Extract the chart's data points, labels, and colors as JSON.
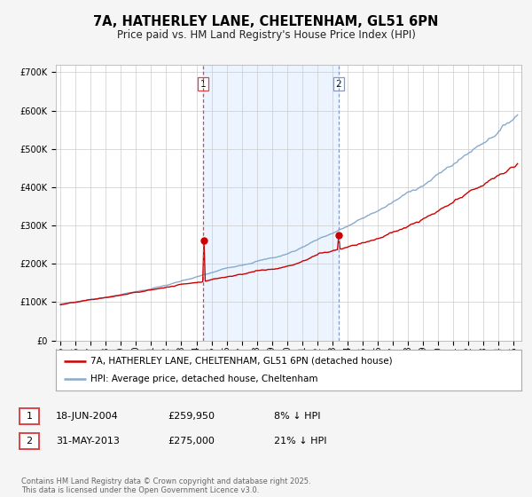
{
  "title": "7A, HATHERLEY LANE, CHELTENHAM, GL51 6PN",
  "subtitle": "Price paid vs. HM Land Registry's House Price Index (HPI)",
  "ylim": [
    0,
    720000
  ],
  "xlim_start": 1994.7,
  "xlim_end": 2025.5,
  "yticks": [
    0,
    100000,
    200000,
    300000,
    400000,
    500000,
    600000,
    700000
  ],
  "ytick_labels": [
    "£0",
    "£100K",
    "£200K",
    "£300K",
    "£400K",
    "£500K",
    "£600K",
    "£700K"
  ],
  "xticks": [
    1995,
    1996,
    1997,
    1998,
    1999,
    2000,
    2001,
    2002,
    2003,
    2004,
    2005,
    2006,
    2007,
    2008,
    2009,
    2010,
    2011,
    2012,
    2013,
    2014,
    2015,
    2016,
    2017,
    2018,
    2019,
    2020,
    2021,
    2022,
    2023,
    2024,
    2025
  ],
  "bg_color": "#f5f5f5",
  "plot_bg_color": "#ffffff",
  "grid_color": "#cccccc",
  "red_line_color": "#cc0000",
  "blue_line_color": "#88aacc",
  "marker_color": "#cc0000",
  "vline1_color": "#dd4444",
  "vline2_color": "#8899bb",
  "shade_color": "#ddeeff",
  "legend_label_red": "7A, HATHERLEY LANE, CHELTENHAM, GL51 6PN (detached house)",
  "legend_label_blue": "HPI: Average price, detached house, Cheltenham",
  "annotation1_date": "18-JUN-2004",
  "annotation1_price": "£259,950",
  "annotation1_hpi": "8% ↓ HPI",
  "annotation1_year": 2004.46,
  "annotation1_val": 259950,
  "annotation2_date": "31-MAY-2013",
  "annotation2_price": "£275,000",
  "annotation2_hpi": "21% ↓ HPI",
  "annotation2_year": 2013.41,
  "annotation2_val": 275000,
  "footer": "Contains HM Land Registry data © Crown copyright and database right 2025.\nThis data is licensed under the Open Government Licence v3.0.",
  "title_fontsize": 10.5,
  "subtitle_fontsize": 8.5,
  "tick_fontsize": 7,
  "legend_fontsize": 7.5,
  "footer_fontsize": 6
}
